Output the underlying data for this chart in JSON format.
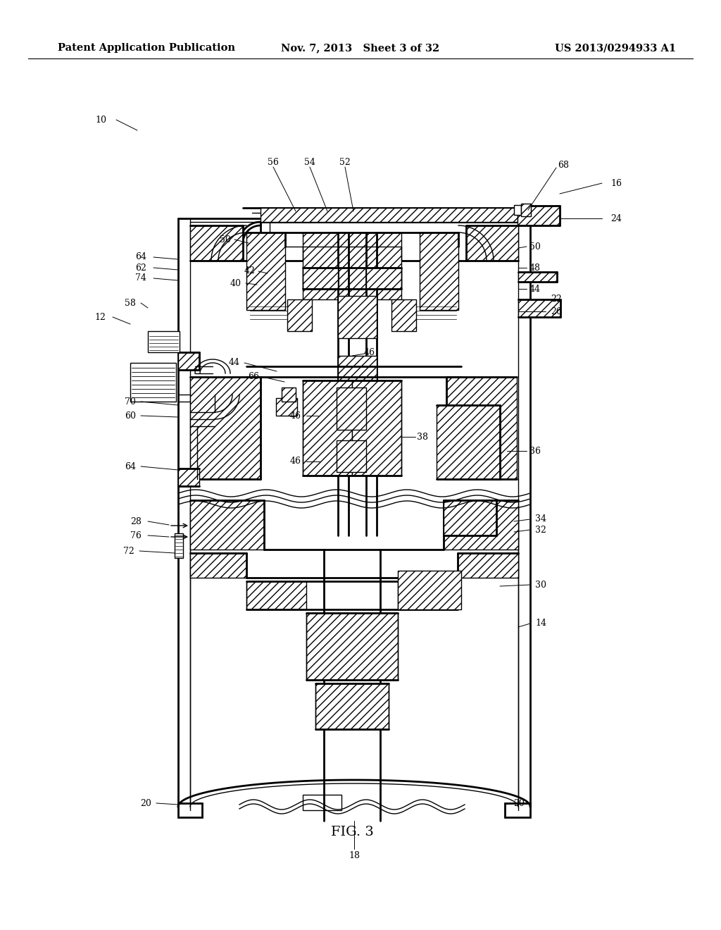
{
  "background_color": "#ffffff",
  "header": {
    "left": "Patent Application Publication",
    "center": "Nov. 7, 2013   Sheet 3 of 32",
    "right": "US 2013/0294933 A1",
    "fontsize": 10.5
  },
  "caption": "FIG. 3",
  "caption_fontsize": 14,
  "label_fontsize": 9,
  "diagram_lw": 1.0,
  "diagram_lw_thick": 2.0
}
